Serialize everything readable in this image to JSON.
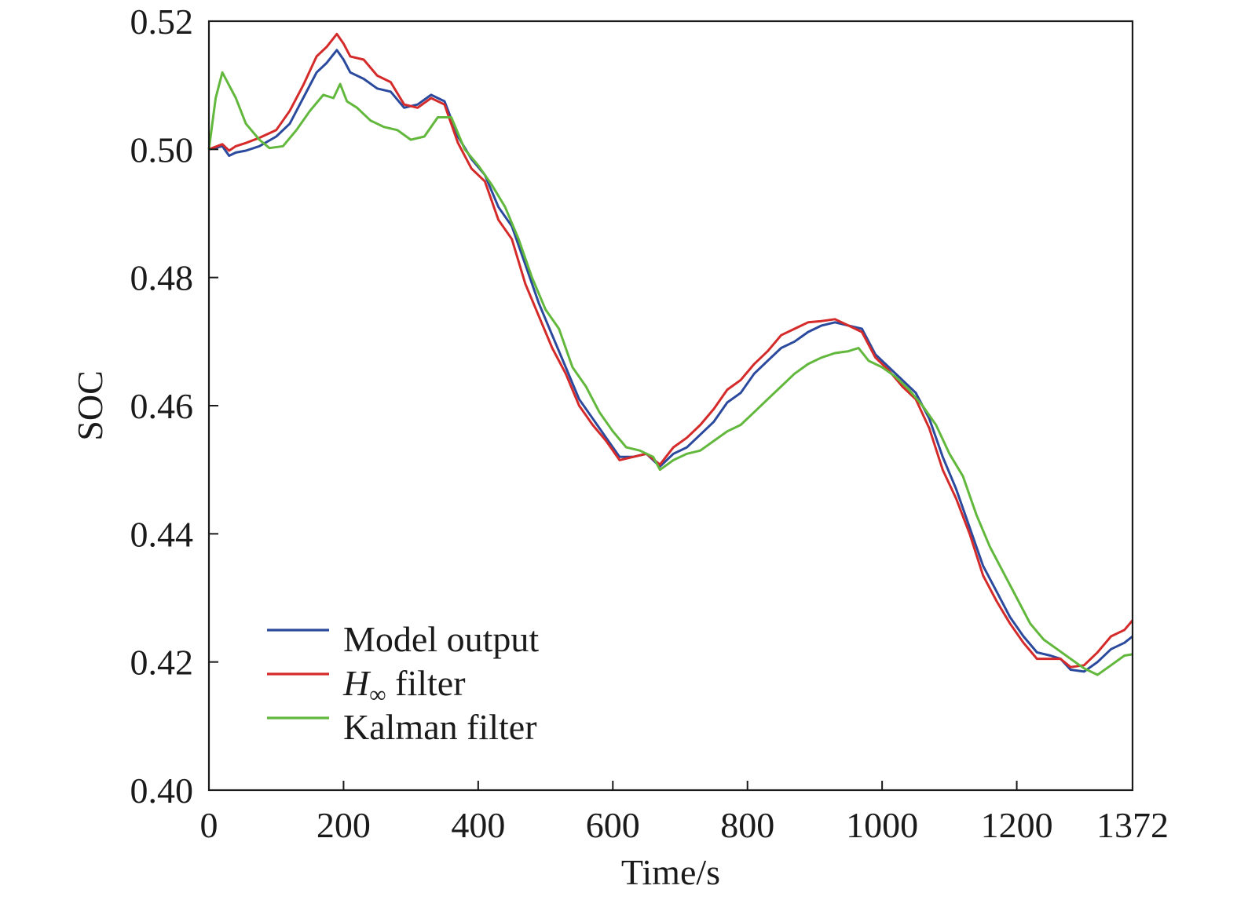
{
  "chart_data": {
    "type": "line",
    "xlabel": "Time/s",
    "ylabel": "SOC",
    "xlim": [
      0,
      1372
    ],
    "ylim": [
      0.4,
      0.52
    ],
    "xticks": [
      0,
      200,
      400,
      600,
      800,
      1000,
      1200,
      1372
    ],
    "xtick_labels": [
      "0",
      "200",
      "400",
      "600",
      "800",
      "1000",
      "1200",
      "1372"
    ],
    "yticks": [
      0.4,
      0.42,
      0.44,
      0.46,
      0.48,
      0.5,
      0.52
    ],
    "ytick_labels": [
      "0.40",
      "0.42",
      "0.44",
      "0.46",
      "0.48",
      "0.50",
      "0.52"
    ],
    "grid": false,
    "legend_position": "bottom-left",
    "series": [
      {
        "name": "Model output",
        "color": "#2b4a9e",
        "points": [
          [
            0,
            0.5
          ],
          [
            20,
            0.5005
          ],
          [
            30,
            0.499
          ],
          [
            40,
            0.4995
          ],
          [
            55,
            0.4998
          ],
          [
            75,
            0.5005
          ],
          [
            100,
            0.502
          ],
          [
            120,
            0.504
          ],
          [
            140,
            0.508
          ],
          [
            160,
            0.512
          ],
          [
            175,
            0.5135
          ],
          [
            190,
            0.5155
          ],
          [
            200,
            0.514
          ],
          [
            210,
            0.512
          ],
          [
            230,
            0.511
          ],
          [
            250,
            0.5095
          ],
          [
            270,
            0.509
          ],
          [
            290,
            0.5065
          ],
          [
            310,
            0.507
          ],
          [
            330,
            0.5085
          ],
          [
            350,
            0.5075
          ],
          [
            370,
            0.502
          ],
          [
            390,
            0.4985
          ],
          [
            410,
            0.496
          ],
          [
            430,
            0.491
          ],
          [
            450,
            0.488
          ],
          [
            470,
            0.482
          ],
          [
            490,
            0.476
          ],
          [
            510,
            0.471
          ],
          [
            530,
            0.466
          ],
          [
            550,
            0.461
          ],
          [
            570,
            0.458
          ],
          [
            590,
            0.455
          ],
          [
            610,
            0.452
          ],
          [
            630,
            0.452
          ],
          [
            650,
            0.4525
          ],
          [
            670,
            0.4505
          ],
          [
            690,
            0.4525
          ],
          [
            710,
            0.4535
          ],
          [
            730,
            0.4555
          ],
          [
            750,
            0.4575
          ],
          [
            770,
            0.4605
          ],
          [
            790,
            0.462
          ],
          [
            810,
            0.465
          ],
          [
            830,
            0.467
          ],
          [
            850,
            0.469
          ],
          [
            870,
            0.47
          ],
          [
            890,
            0.4715
          ],
          [
            910,
            0.4725
          ],
          [
            930,
            0.473
          ],
          [
            950,
            0.4725
          ],
          [
            970,
            0.472
          ],
          [
            990,
            0.468
          ],
          [
            1010,
            0.466
          ],
          [
            1030,
            0.464
          ],
          [
            1050,
            0.462
          ],
          [
            1070,
            0.458
          ],
          [
            1090,
            0.452
          ],
          [
            1110,
            0.447
          ],
          [
            1130,
            0.441
          ],
          [
            1150,
            0.435
          ],
          [
            1170,
            0.431
          ],
          [
            1190,
            0.427
          ],
          [
            1210,
            0.424
          ],
          [
            1230,
            0.4215
          ],
          [
            1250,
            0.421
          ],
          [
            1265,
            0.4205
          ],
          [
            1280,
            0.4188
          ],
          [
            1300,
            0.4185
          ],
          [
            1320,
            0.42
          ],
          [
            1340,
            0.422
          ],
          [
            1360,
            0.423
          ],
          [
            1372,
            0.424
          ]
        ]
      },
      {
        "name": "H∞ filter",
        "color": "#d42a2a",
        "points": [
          [
            0,
            0.5
          ],
          [
            20,
            0.5008
          ],
          [
            30,
            0.4998
          ],
          [
            40,
            0.5005
          ],
          [
            55,
            0.501
          ],
          [
            75,
            0.5018
          ],
          [
            100,
            0.503
          ],
          [
            120,
            0.506
          ],
          [
            140,
            0.51
          ],
          [
            160,
            0.5145
          ],
          [
            175,
            0.516
          ],
          [
            190,
            0.518
          ],
          [
            200,
            0.5165
          ],
          [
            210,
            0.5145
          ],
          [
            230,
            0.514
          ],
          [
            250,
            0.5115
          ],
          [
            270,
            0.5105
          ],
          [
            290,
            0.507
          ],
          [
            310,
            0.5065
          ],
          [
            330,
            0.508
          ],
          [
            350,
            0.507
          ],
          [
            370,
            0.501
          ],
          [
            390,
            0.497
          ],
          [
            410,
            0.495
          ],
          [
            430,
            0.489
          ],
          [
            450,
            0.486
          ],
          [
            470,
            0.479
          ],
          [
            490,
            0.474
          ],
          [
            510,
            0.469
          ],
          [
            530,
            0.465
          ],
          [
            550,
            0.46
          ],
          [
            570,
            0.457
          ],
          [
            590,
            0.4545
          ],
          [
            610,
            0.4515
          ],
          [
            630,
            0.452
          ],
          [
            650,
            0.4525
          ],
          [
            670,
            0.4508
          ],
          [
            690,
            0.4535
          ],
          [
            710,
            0.455
          ],
          [
            730,
            0.457
          ],
          [
            750,
            0.4595
          ],
          [
            770,
            0.4625
          ],
          [
            790,
            0.464
          ],
          [
            810,
            0.4665
          ],
          [
            830,
            0.4685
          ],
          [
            850,
            0.471
          ],
          [
            870,
            0.472
          ],
          [
            890,
            0.473
          ],
          [
            910,
            0.4732
          ],
          [
            930,
            0.4735
          ],
          [
            950,
            0.4725
          ],
          [
            970,
            0.4715
          ],
          [
            990,
            0.4675
          ],
          [
            1010,
            0.4655
          ],
          [
            1030,
            0.463
          ],
          [
            1050,
            0.461
          ],
          [
            1070,
            0.4565
          ],
          [
            1090,
            0.45
          ],
          [
            1110,
            0.4455
          ],
          [
            1130,
            0.44
          ],
          [
            1150,
            0.4335
          ],
          [
            1170,
            0.4295
          ],
          [
            1190,
            0.426
          ],
          [
            1210,
            0.423
          ],
          [
            1230,
            0.4205
          ],
          [
            1250,
            0.4205
          ],
          [
            1265,
            0.4205
          ],
          [
            1280,
            0.4192
          ],
          [
            1300,
            0.4195
          ],
          [
            1320,
            0.4215
          ],
          [
            1340,
            0.424
          ],
          [
            1360,
            0.425
          ],
          [
            1372,
            0.4265
          ]
        ]
      },
      {
        "name": "Kalman filter",
        "color": "#62b83c",
        "points": [
          [
            0,
            0.5
          ],
          [
            10,
            0.508
          ],
          [
            20,
            0.512
          ],
          [
            30,
            0.51
          ],
          [
            40,
            0.508
          ],
          [
            55,
            0.504
          ],
          [
            75,
            0.5015
          ],
          [
            90,
            0.5002
          ],
          [
            110,
            0.5005
          ],
          [
            130,
            0.503
          ],
          [
            150,
            0.506
          ],
          [
            170,
            0.5085
          ],
          [
            185,
            0.508
          ],
          [
            195,
            0.5102
          ],
          [
            205,
            0.5075
          ],
          [
            220,
            0.5065
          ],
          [
            240,
            0.5045
          ],
          [
            260,
            0.5035
          ],
          [
            280,
            0.503
          ],
          [
            300,
            0.5015
          ],
          [
            320,
            0.502
          ],
          [
            340,
            0.505
          ],
          [
            360,
            0.505
          ],
          [
            380,
            0.5
          ],
          [
            400,
            0.4975
          ],
          [
            420,
            0.4945
          ],
          [
            440,
            0.491
          ],
          [
            460,
            0.486
          ],
          [
            480,
            0.48
          ],
          [
            500,
            0.475
          ],
          [
            520,
            0.472
          ],
          [
            540,
            0.466
          ],
          [
            560,
            0.463
          ],
          [
            580,
            0.459
          ],
          [
            600,
            0.456
          ],
          [
            620,
            0.4535
          ],
          [
            640,
            0.453
          ],
          [
            660,
            0.452
          ],
          [
            670,
            0.45
          ],
          [
            690,
            0.4515
          ],
          [
            710,
            0.4525
          ],
          [
            730,
            0.453
          ],
          [
            750,
            0.4545
          ],
          [
            770,
            0.456
          ],
          [
            790,
            0.457
          ],
          [
            810,
            0.459
          ],
          [
            830,
            0.461
          ],
          [
            850,
            0.463
          ],
          [
            870,
            0.465
          ],
          [
            890,
            0.4665
          ],
          [
            910,
            0.4675
          ],
          [
            930,
            0.4682
          ],
          [
            950,
            0.4685
          ],
          [
            965,
            0.469
          ],
          [
            980,
            0.467
          ],
          [
            1000,
            0.466
          ],
          [
            1020,
            0.4645
          ],
          [
            1040,
            0.4625
          ],
          [
            1060,
            0.46
          ],
          [
            1080,
            0.457
          ],
          [
            1100,
            0.4525
          ],
          [
            1120,
            0.449
          ],
          [
            1140,
            0.443
          ],
          [
            1160,
            0.438
          ],
          [
            1180,
            0.434
          ],
          [
            1200,
            0.43
          ],
          [
            1220,
            0.426
          ],
          [
            1240,
            0.4235
          ],
          [
            1260,
            0.422
          ],
          [
            1280,
            0.4205
          ],
          [
            1300,
            0.419
          ],
          [
            1320,
            0.418
          ],
          [
            1340,
            0.4195
          ],
          [
            1360,
            0.421
          ],
          [
            1372,
            0.4212
          ]
        ]
      }
    ]
  }
}
